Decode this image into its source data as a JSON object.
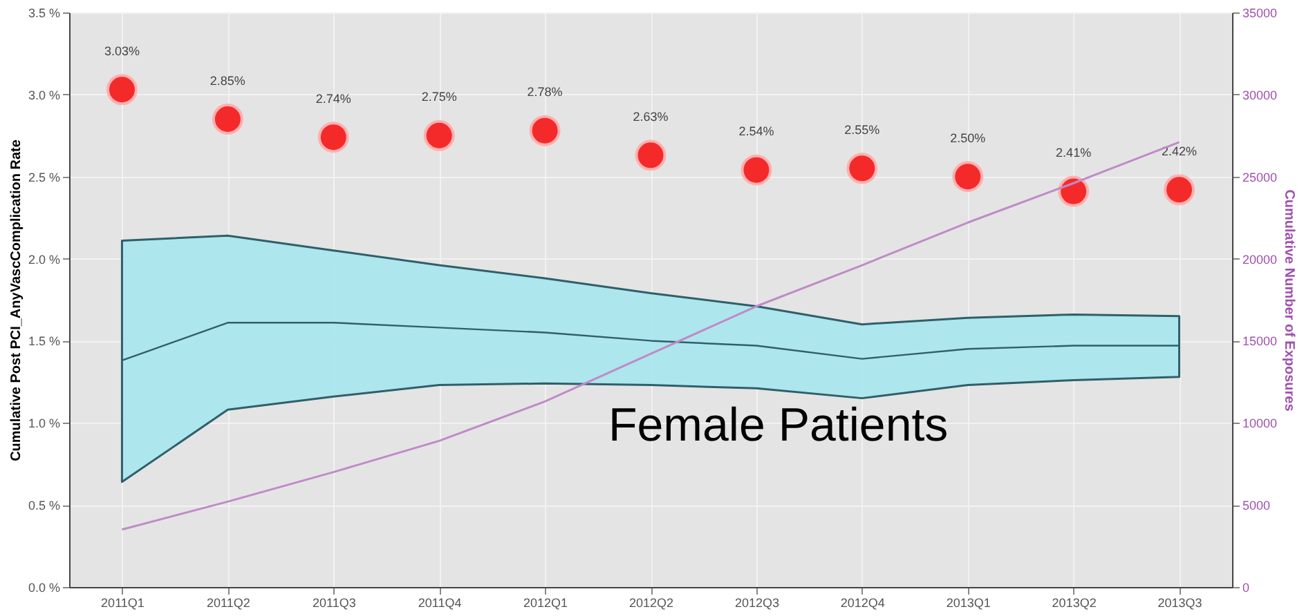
{
  "chart_data": {
    "type": "scatter",
    "ylabel": "Cumulative Post PCI_AnyVascComplication Rate",
    "y2label": "Cumulative Number of Exposures",
    "categories": [
      "2011Q1",
      "2011Q2",
      "2011Q3",
      "2011Q4",
      "2012Q1",
      "2012Q2",
      "2012Q3",
      "2012Q4",
      "2013Q1",
      "2013Q2",
      "2013Q3"
    ],
    "series": [
      {
        "type": "line",
        "color": "#2f5f6a",
        "values": [
          1.38,
          1.61,
          1.61,
          1.58,
          1.55,
          1.5,
          1.47,
          1.39,
          1.45,
          1.47,
          1.47
        ],
        "lower": [
          0.64,
          1.08,
          1.16,
          1.23,
          1.24,
          1.23,
          1.21,
          1.15,
          1.23,
          1.26,
          1.28
        ],
        "upper": [
          2.11,
          2.14,
          2.05,
          1.96,
          1.88,
          1.79,
          1.71,
          1.6,
          1.64,
          1.66,
          1.65
        ]
      },
      {
        "type": "line",
        "axis": "y2",
        "color": "#c08ac8",
        "values": [
          3500,
          5200,
          7000,
          8900,
          11300,
          14200,
          17100,
          19600,
          22200,
          24600,
          27100
        ]
      },
      {
        "marker": "circle",
        "color": "#f42a2a",
        "values": [
          3.03,
          2.85,
          2.74,
          2.75,
          2.78,
          2.63,
          2.54,
          2.55,
          2.5,
          2.41,
          2.42
        ],
        "value_labels": [
          "3.03%",
          "2.85%",
          "2.74%",
          "2.75%",
          "2.78%",
          "2.63%",
          "2.54%",
          "2.55%",
          "2.50%",
          "2.41%",
          "2.42%"
        ]
      }
    ],
    "ylim": [
      0,
      3.5
    ],
    "yticks": [
      {
        "value": 0,
        "label": "0.0 %"
      },
      {
        "value": 0.5,
        "label": "0.5 %"
      },
      {
        "value": 1,
        "label": "1.0 %"
      },
      {
        "value": 1.5,
        "label": "1.5 %"
      },
      {
        "value": 2,
        "label": "2.0 %"
      },
      {
        "value": 2.5,
        "label": "2.5 %"
      },
      {
        "value": 3,
        "label": "3.0 %"
      },
      {
        "value": 3.5,
        "label": "3.5 %"
      }
    ],
    "y2lim": [
      0,
      35000
    ],
    "y2ticks": [
      0,
      5000,
      10000,
      15000,
      20000,
      25000,
      30000,
      35000
    ],
    "grid": true,
    "annotations": [
      "Female Patients"
    ]
  }
}
